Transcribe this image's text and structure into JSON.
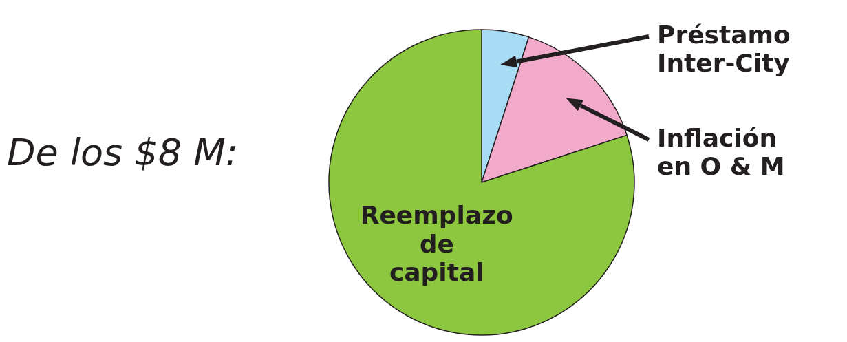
{
  "chart_data": {
    "type": "pie",
    "title": "De los $8 M:",
    "categories": [
      "Préstamo Inter-City",
      "Inflación en O & M",
      "Reemplazo de capital"
    ],
    "values": [
      5,
      15,
      80
    ],
    "colors": [
      "#a8dcf5",
      "#f2aacb",
      "#8dc63f"
    ],
    "legend": false
  }
}
